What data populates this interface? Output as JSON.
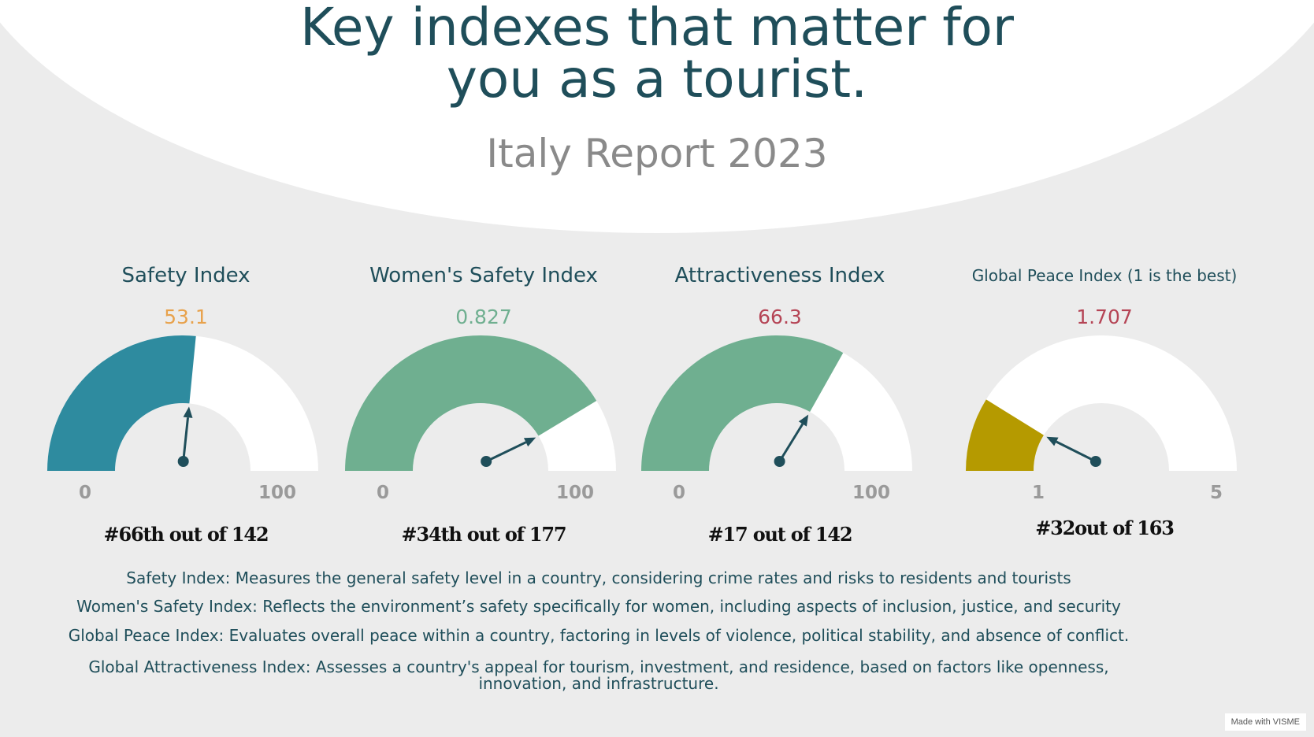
{
  "header": {
    "title_line1": "Key indexes that matter for",
    "title_line2": "you as a tourist.",
    "subtitle": "Italy Report 2023"
  },
  "chart_data": [
    {
      "type": "gauge",
      "title": "Safety Index",
      "value": 53.1,
      "value_label": "53.1",
      "min": 0,
      "max": 100,
      "min_label": "0",
      "max_label": "100",
      "rank": "#66th out of 142",
      "fill_color": "#2e8b9f",
      "value_color": "#e8a24c"
    },
    {
      "type": "gauge",
      "title": "Women's Safety Index",
      "value": 0.827,
      "value_label": "0.827",
      "min": 0,
      "max": 1,
      "min_label": "0",
      "max_label": "100",
      "rank": "#34th out of 177",
      "fill_color": "#6faf90",
      "value_color": "#6faf90"
    },
    {
      "type": "gauge",
      "title": "Attractiveness Index",
      "value": 66.3,
      "value_label": "66.3",
      "min": 0,
      "max": 100,
      "min_label": "0",
      "max_label": "100",
      "rank": "#17 out of 142",
      "fill_color": "#6faf90",
      "value_color": "#b54455"
    },
    {
      "type": "gauge",
      "title": "Global Peace Index (1 is the best)",
      "value": 1.707,
      "value_label": "1.707",
      "min": 1,
      "max": 5,
      "min_label": "1",
      "max_label": "5",
      "rank": "#32out of 163",
      "fill_color": "#b59a00",
      "value_color": "#b54455"
    }
  ],
  "descriptions": [
    "Safety Index: Measures the general safety level in a country, considering crime rates and risks to residents and tourists",
    "Women's Safety Index: Reflects the environment’s safety specifically for women, including aspects of inclusion, justice, and security",
    "Global Peace Index: Evaluates overall peace within a country, factoring in levels of violence, political stability, and absence of conflict.",
    "Global Attractiveness Index: Assesses a country's appeal for tourism, investment, and residence, based on factors like openness, innovation, and infrastructure."
  ],
  "badge": "Made with VISME",
  "colors": {
    "title": "#1f4e5a",
    "needle": "#1f4e5a",
    "background": "#ececec"
  }
}
